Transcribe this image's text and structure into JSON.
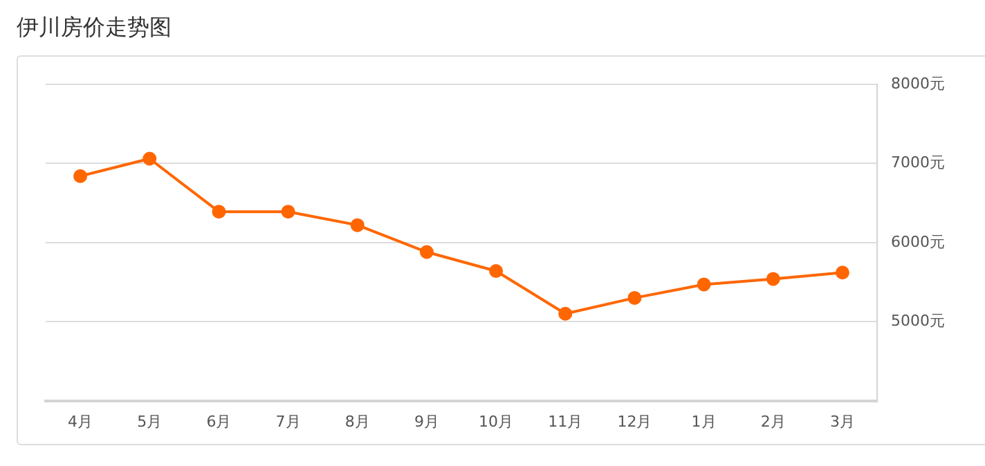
{
  "chart_data": {
    "type": "line",
    "title": "伊川房价走势图",
    "categories": [
      "4月",
      "5月",
      "6月",
      "7月",
      "8月",
      "9月",
      "10月",
      "11月",
      "12月",
      "1月",
      "2月",
      "3月"
    ],
    "series": [
      {
        "color": "#ff6600",
        "values": [
          6840,
          7060,
          6390,
          6390,
          6220,
          5880,
          5640,
          5100,
          5300,
          5470,
          5540,
          5620
        ]
      }
    ],
    "ylim": [
      4000,
      8000
    ],
    "yticks": [
      {
        "value": 5000,
        "label": "5000元"
      },
      {
        "value": 6000,
        "label": "6000元"
      },
      {
        "value": 7000,
        "label": "7000元"
      },
      {
        "value": 8000,
        "label": "8000元"
      }
    ],
    "grid": "y",
    "marker": "circle",
    "line_style": "solid",
    "legend": false
  }
}
